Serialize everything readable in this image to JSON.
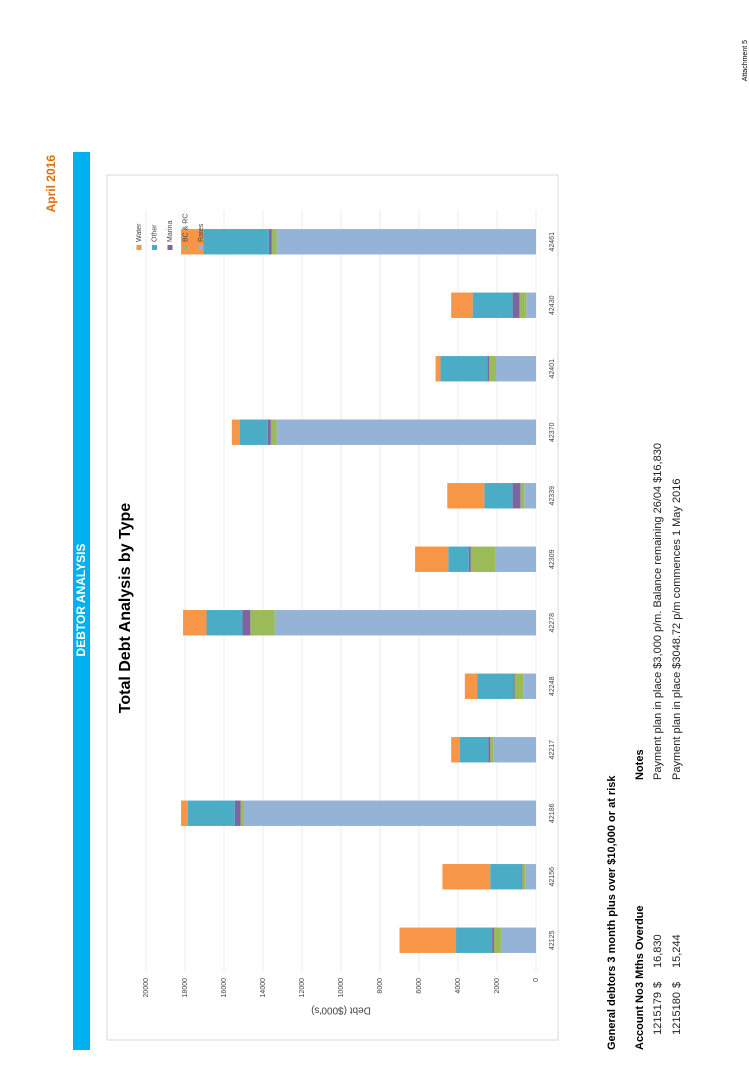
{
  "header": {
    "attachment": "Attachment 5",
    "date": "April 2016",
    "banner": "DEBTOR ANALYSIS"
  },
  "chart_data": {
    "type": "stacked-bar",
    "title": "Total Debt Analysis by Type",
    "y_label": "Debt ($000's)",
    "categories": [
      "42125",
      "42156",
      "42186",
      "42217",
      "42248",
      "42278",
      "42309",
      "42339",
      "42370",
      "42401",
      "42430",
      "42461"
    ],
    "series": [
      {
        "name": "Water",
        "color": "#f79646",
        "values": [
          2900,
          2450,
          350,
          450,
          650,
          1200,
          1700,
          1900,
          400,
          250,
          1100,
          1150
        ]
      },
      {
        "name": "Other",
        "color": "#4bacc6",
        "values": [
          1850,
          1600,
          2400,
          1450,
          1850,
          1850,
          1050,
          1450,
          1450,
          2400,
          2050,
          3350
        ]
      },
      {
        "name": "Marina",
        "color": "#8064a2",
        "values": [
          100,
          50,
          300,
          100,
          50,
          400,
          100,
          400,
          150,
          100,
          350,
          150
        ]
      },
      {
        "name": "BC & RC",
        "color": "#9bbb59",
        "values": [
          350,
          150,
          150,
          150,
          450,
          1250,
          1250,
          200,
          300,
          350,
          350,
          250
        ]
      },
      {
        "name": "Rates",
        "color": "#95b3d7",
        "values": [
          1800,
          550,
          15000,
          2200,
          650,
          13400,
          2100,
          600,
          13300,
          2050,
          500,
          13300
        ]
      }
    ],
    "ylim": [
      0,
      20000
    ],
    "yticks": [
      0,
      2000,
      4000,
      6000,
      8000,
      10000,
      12000,
      14000,
      16000,
      18000,
      20000
    ],
    "grid": true,
    "legend": "right"
  },
  "debtors": {
    "title": "General debtors 3 month plus over $10,000 or at risk",
    "columns": [
      "Account No",
      "3 Mths Overdue",
      "Notes"
    ],
    "rows": [
      [
        "1215179",
        "$",
        "16,830",
        "Payment plan in place $3,000 p/m. Balance remaining 26/04 $16,830"
      ],
      [
        "1215180",
        "$",
        "15,244",
        "Payment plan in place $3048.72 p/m commences 1 May 2016"
      ]
    ]
  }
}
